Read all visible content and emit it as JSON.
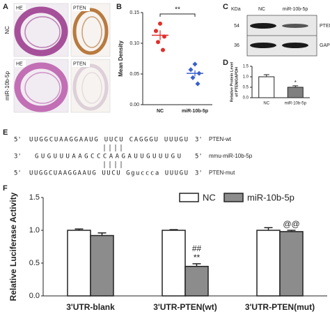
{
  "panel_labels": [
    "A",
    "B",
    "C",
    "D",
    "E",
    "F"
  ],
  "panel_a": {
    "columns": [
      "HE",
      "PTEN"
    ],
    "rows": [
      "NC",
      "miR-10b-5p"
    ]
  },
  "panel_c": {
    "unit": "KDa",
    "lanes": [
      "NC",
      "miR-10b-5p"
    ],
    "bands": [
      {
        "size": 54,
        "name": "PTEN"
      },
      {
        "size": 36,
        "name": "GAPDH"
      }
    ]
  },
  "panel_e": {
    "sequences": [
      {
        "start": "5'",
        "seq": "U U G G C U A A G G A A U G   U U C U   C A G G G U   U U U G U",
        "end": "3'",
        "name": "PTEN-wt"
      },
      {
        "start": "3'",
        "seq": "G U G U U U A A G C C C A A G A U U G U U U G U",
        "end": "5'",
        "name": "mmu-miR-10b-5p"
      },
      {
        "start": "5'",
        "seq": "U U G G C U A A G G A A U G   U U C U   G g u c c c a   U U U G U",
        "end": "3'",
        "name": "PTEN-mut"
      }
    ]
  },
  "chart_data": [
    {
      "type": "dot",
      "ylabel": "Mean Density",
      "categories": [
        "NC",
        "miR-10b-5p"
      ],
      "groups": [
        {
          "color": "#e0302c",
          "values": [
            0.132,
            0.12,
            0.111,
            0.102,
            0.089
          ],
          "mean": 0.113,
          "error": 0.008
        },
        {
          "color": "#3a5fcd",
          "values": [
            0.066,
            0.057,
            0.051,
            0.044,
            0.034
          ],
          "mean": 0.051,
          "error": 0.005
        }
      ],
      "significance": "**",
      "ylim": [
        0,
        0.15
      ],
      "yticks": [
        {
          "value": 0,
          "label": "0.00"
        },
        0.05,
        {
          "value": 0.1,
          "label": "0.10"
        },
        0.15
      ]
    },
    {
      "type": "bar",
      "ylabel": [
        "Relative Protein Level",
        "of PTEN/GAPDH"
      ],
      "categories": [
        "NC",
        "miR-10b-5p"
      ],
      "values": [
        1.0,
        0.5
      ],
      "errors": [
        0.1,
        0.07
      ],
      "colors": [
        "#ffffff",
        "#808080"
      ],
      "significance": [
        null,
        "*"
      ],
      "ylim": [
        0,
        1.5
      ],
      "yticks": [
        {
          "value": 0,
          "label": "0.0"
        },
        0.5,
        {
          "value": 1,
          "label": "1.0"
        },
        1.5
      ]
    },
    {
      "type": "grouped_bar",
      "ylabel": "Relative Luciferase Activity",
      "categories": [
        "3'UTR-blank",
        "3'UTR-PTEN(wt)",
        "3'UTR-PTEN(mut)"
      ],
      "series": [
        {
          "name": "NC",
          "color": "#ffffff",
          "values": [
            1.0,
            1.0,
            1.0
          ],
          "errors": [
            0.02,
            0.01,
            0.04
          ]
        },
        {
          "name": "miR-10b-5p",
          "color": "#8c8c8c",
          "values": [
            0.92,
            0.45,
            0.98
          ],
          "errors": [
            0.04,
            0.04,
            0.02
          ],
          "significance": [
            null,
            [
              "##",
              "**"
            ],
            [
              "@@"
            ]
          ]
        }
      ],
      "legend": "top",
      "ylim": [
        0,
        1.5
      ],
      "yticks": [
        {
          "value": 0,
          "label": "0.0"
        },
        0.5,
        {
          "value": 1,
          "label": "1.0"
        },
        1.5
      ]
    }
  ]
}
